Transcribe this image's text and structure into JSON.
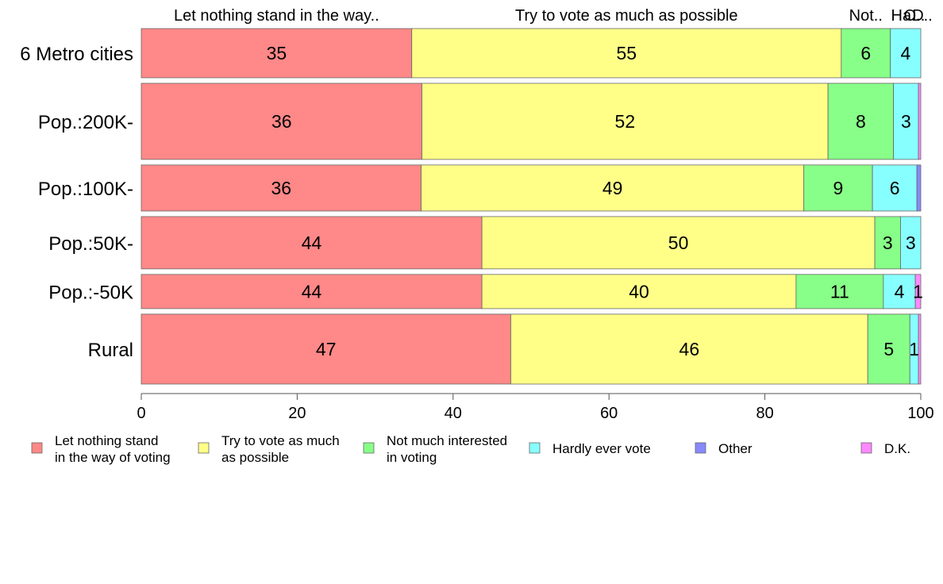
{
  "chart_data": {
    "type": "bar",
    "orientation": "horizontal",
    "stacked": true,
    "categories": [
      "6 Metro cities",
      "Pop.:200K-",
      "Pop.:100K-",
      "Pop.:50K-",
      "Pop.:-50K",
      "Rural"
    ],
    "category_weights": [
      0.95,
      1.47,
      0.89,
      1.01,
      0.66,
      1.35
    ],
    "series": [
      {
        "name": "Let nothing stand\nin the way of voting",
        "top_label": "Let nothing stand in the way..",
        "color": "#ff8888",
        "values": [
          34.7,
          36.0,
          35.9,
          43.7,
          43.7,
          47.4
        ]
      },
      {
        "name": "Try to vote as much\nas possible",
        "top_label": "Try to vote as much as possible",
        "color": "#ffff88",
        "values": [
          55.1,
          52.1,
          49.1,
          50.4,
          40.3,
          45.8
        ]
      },
      {
        "name": "Not much interested\nin voting",
        "top_label": "Not..",
        "color": "#88ff88",
        "values": [
          6.3,
          8.4,
          8.8,
          3.3,
          11.2,
          5.4
        ]
      },
      {
        "name": "Hardly ever vote",
        "top_label": "Ha..",
        "color": "#88ffff",
        "values": [
          3.9,
          3.2,
          5.7,
          2.6,
          4.1,
          1.1
        ]
      },
      {
        "name": "Other",
        "top_label": "O..",
        "color": "#8888ff",
        "values": [
          0.0,
          0.0,
          0.5,
          0.0,
          0.0,
          0.0
        ]
      },
      {
        "name": "D.K.",
        "top_label": "D..",
        "color": "#ff88ff",
        "values": [
          0.0,
          0.3,
          0.0,
          0.0,
          0.7,
          0.3
        ]
      }
    ],
    "data_labels": [
      [
        "35",
        "55",
        "6",
        "4",
        "",
        ""
      ],
      [
        "36",
        "52",
        "8",
        "3",
        "",
        ""
      ],
      [
        "36",
        "49",
        "9",
        "6",
        "",
        ""
      ],
      [
        "44",
        "50",
        "3",
        "3",
        "",
        ""
      ],
      [
        "44",
        "40",
        "11",
        "4",
        "",
        "1"
      ],
      [
        "47",
        "46",
        "5",
        "1",
        "",
        ""
      ]
    ],
    "xlim": [
      0,
      100
    ],
    "xticks": [
      0,
      20,
      40,
      60,
      80,
      100
    ],
    "legend_position": "bottom",
    "grid": false
  }
}
